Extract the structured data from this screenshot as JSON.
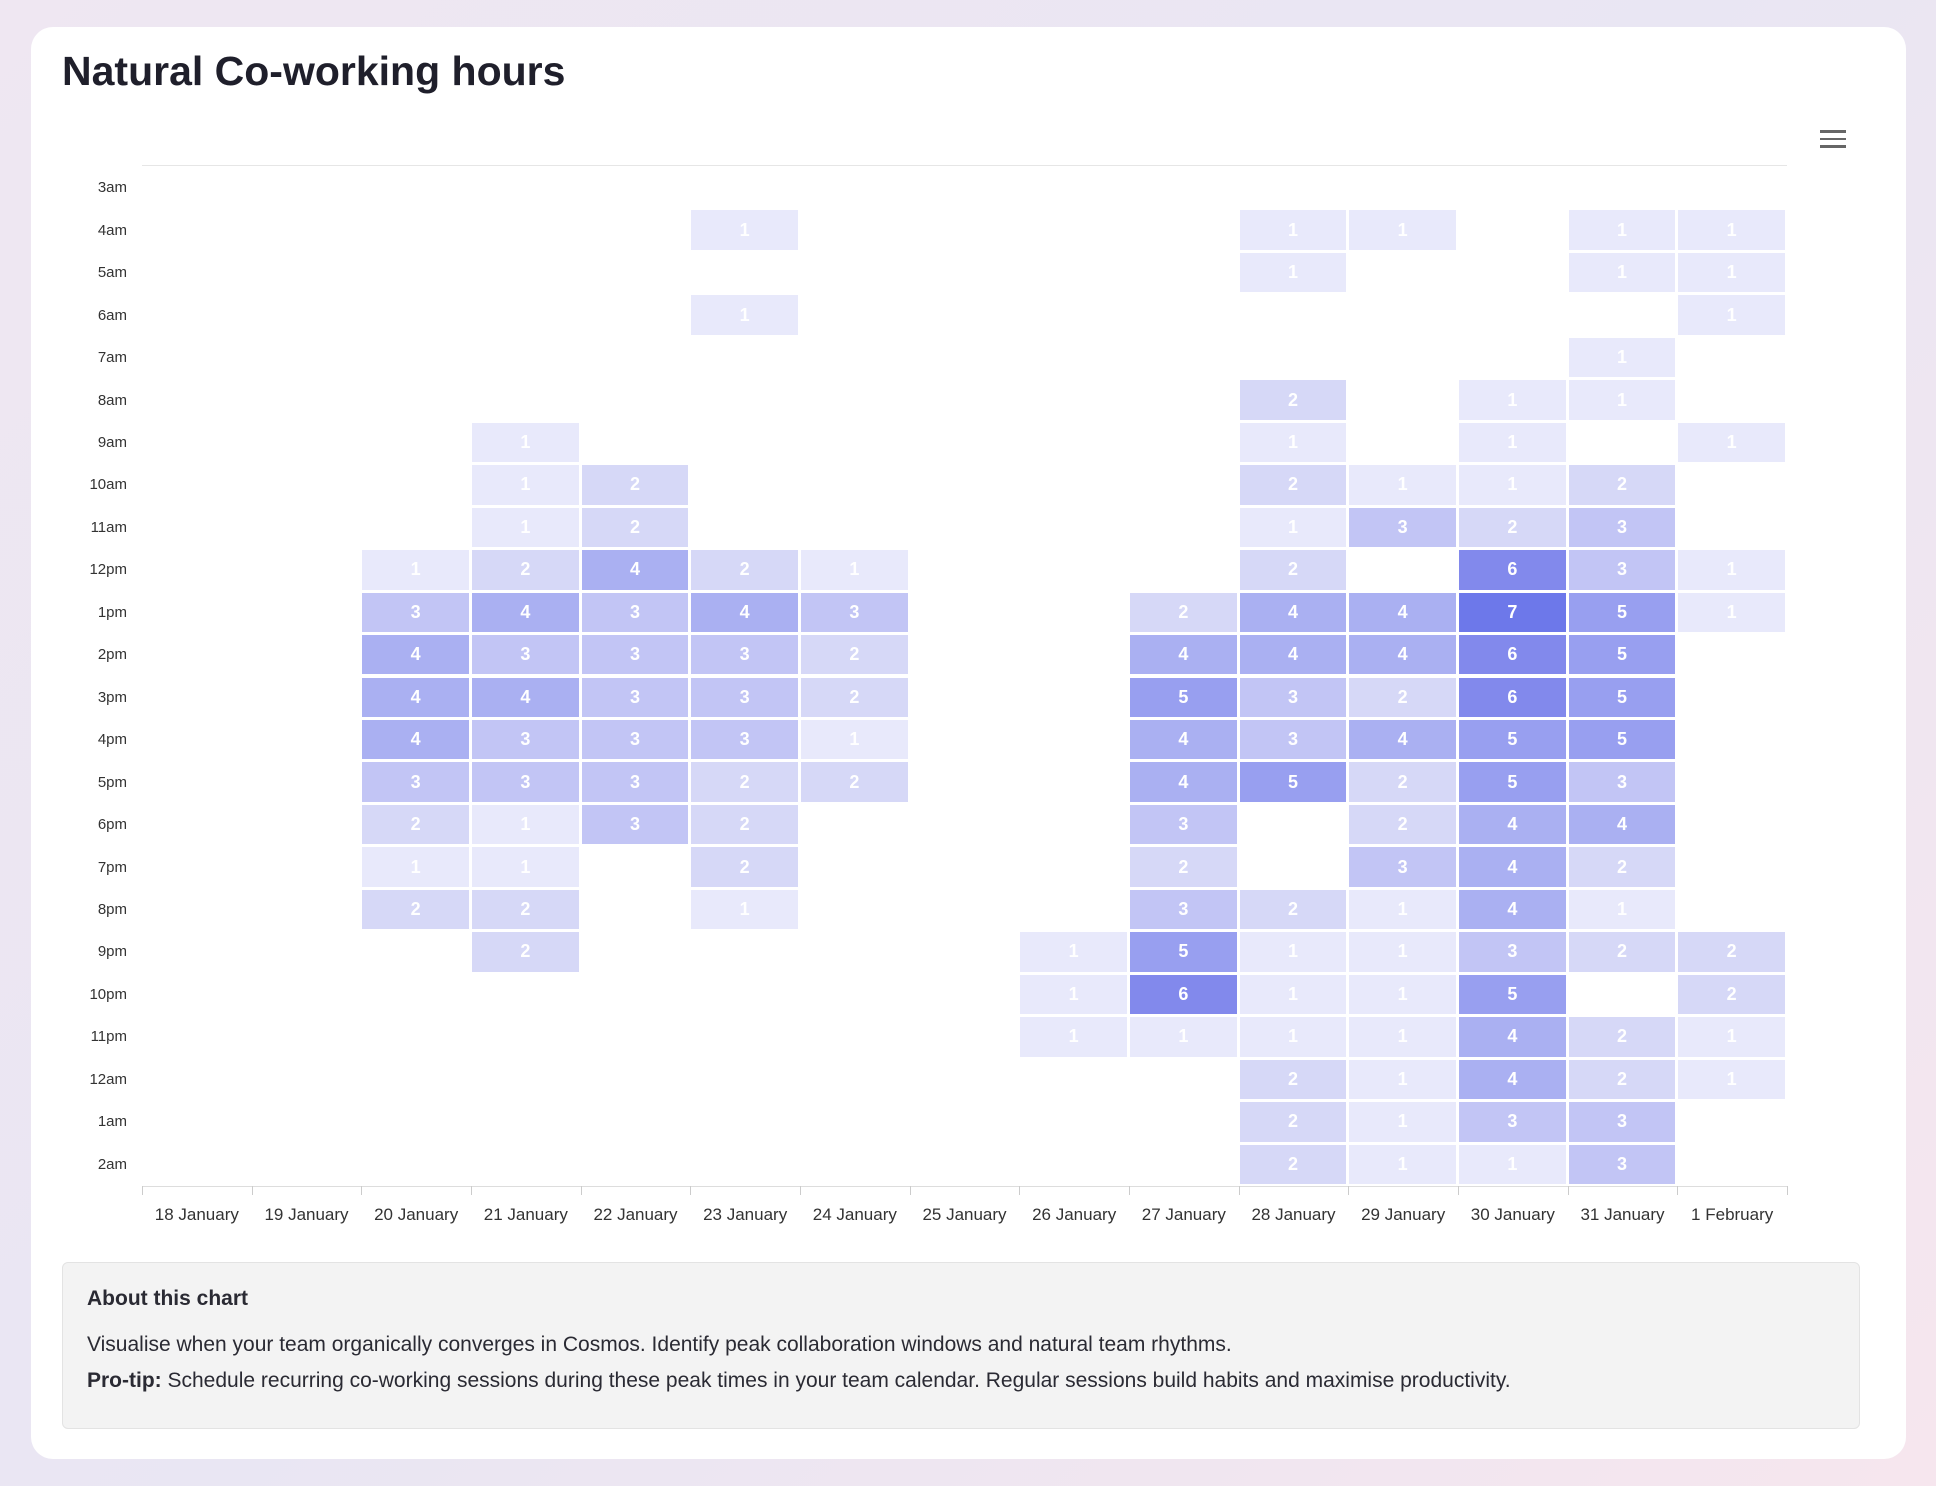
{
  "title": "Natural Co-working hours",
  "menu_icon": "hamburger-menu-icon",
  "about": {
    "heading": "About this chart",
    "description": "Visualise when your team organically converges in Cosmos. Identify peak collaboration windows and natural team rhythms.",
    "protip_label": "Pro-tip:",
    "protip_text": " Schedule recurring co-working sessions during these peak times in your team calendar. Regular sessions build habits and maximise productivity."
  },
  "chart_data": {
    "type": "heatmap",
    "x_categories": [
      "18 January",
      "19 January",
      "20 January",
      "21 January",
      "22 January",
      "23 January",
      "24 January",
      "25 January",
      "26 January",
      "27 January",
      "28 January",
      "29 January",
      "30 January",
      "31 January",
      "1 February"
    ],
    "y_categories": [
      "3am",
      "4am",
      "5am",
      "6am",
      "7am",
      "8am",
      "9am",
      "10am",
      "11am",
      "12pm",
      "1pm",
      "2pm",
      "3pm",
      "4pm",
      "5pm",
      "6pm",
      "7pm",
      "8pm",
      "9pm",
      "10pm",
      "11pm",
      "12am",
      "1am",
      "2am"
    ],
    "color_scale": {
      "1": "#e8e9fb",
      "2": "#d6d8f7",
      "3": "#c2c5f5",
      "4": "#aab0f2",
      "5": "#989ff0",
      "6": "#8289ec",
      "7": "#6d78ea"
    },
    "values": [
      [
        null,
        null,
        null,
        null,
        null,
        null,
        null,
        null,
        null,
        null,
        null,
        null,
        null,
        null,
        null
      ],
      [
        null,
        null,
        null,
        null,
        null,
        1,
        null,
        null,
        null,
        null,
        1,
        1,
        null,
        1,
        1
      ],
      [
        null,
        null,
        null,
        null,
        null,
        null,
        null,
        null,
        null,
        null,
        1,
        null,
        null,
        1,
        1
      ],
      [
        null,
        null,
        null,
        null,
        null,
        1,
        null,
        null,
        null,
        null,
        null,
        null,
        null,
        null,
        1
      ],
      [
        null,
        null,
        null,
        null,
        null,
        null,
        null,
        null,
        null,
        null,
        null,
        null,
        null,
        1,
        null
      ],
      [
        null,
        null,
        null,
        null,
        null,
        null,
        null,
        null,
        null,
        null,
        2,
        null,
        1,
        1,
        null
      ],
      [
        null,
        null,
        null,
        1,
        null,
        null,
        null,
        null,
        null,
        null,
        1,
        null,
        1,
        null,
        1
      ],
      [
        null,
        null,
        null,
        1,
        2,
        null,
        null,
        null,
        null,
        null,
        2,
        1,
        1,
        2,
        null
      ],
      [
        null,
        null,
        null,
        1,
        2,
        null,
        null,
        null,
        null,
        null,
        1,
        3,
        2,
        3,
        null
      ],
      [
        null,
        null,
        1,
        2,
        4,
        2,
        1,
        null,
        null,
        null,
        2,
        null,
        6,
        3,
        1
      ],
      [
        null,
        null,
        3,
        4,
        3,
        4,
        3,
        null,
        null,
        2,
        4,
        4,
        7,
        5,
        1
      ],
      [
        null,
        null,
        4,
        3,
        3,
        3,
        2,
        null,
        null,
        4,
        4,
        4,
        6,
        5,
        null
      ],
      [
        null,
        null,
        4,
        4,
        3,
        3,
        2,
        null,
        null,
        5,
        3,
        2,
        6,
        5,
        null
      ],
      [
        null,
        null,
        4,
        3,
        3,
        3,
        1,
        null,
        null,
        4,
        3,
        4,
        5,
        5,
        null
      ],
      [
        null,
        null,
        3,
        3,
        3,
        2,
        2,
        null,
        null,
        4,
        5,
        2,
        5,
        3,
        null
      ],
      [
        null,
        null,
        2,
        1,
        3,
        2,
        null,
        null,
        null,
        3,
        null,
        2,
        4,
        4,
        null
      ],
      [
        null,
        null,
        1,
        1,
        null,
        2,
        null,
        null,
        null,
        2,
        null,
        3,
        4,
        2,
        null
      ],
      [
        null,
        null,
        2,
        2,
        null,
        1,
        null,
        null,
        null,
        3,
        2,
        1,
        4,
        1,
        null
      ],
      [
        null,
        null,
        null,
        2,
        null,
        null,
        null,
        null,
        1,
        5,
        1,
        1,
        3,
        2,
        2
      ],
      [
        null,
        null,
        null,
        null,
        null,
        null,
        null,
        null,
        1,
        6,
        1,
        1,
        5,
        null,
        2
      ],
      [
        null,
        null,
        null,
        null,
        null,
        null,
        null,
        null,
        1,
        1,
        1,
        1,
        4,
        2,
        1
      ],
      [
        null,
        null,
        null,
        null,
        null,
        null,
        null,
        null,
        null,
        null,
        2,
        1,
        4,
        2,
        1
      ],
      [
        null,
        null,
        null,
        null,
        null,
        null,
        null,
        null,
        null,
        null,
        2,
        1,
        3,
        3,
        null
      ],
      [
        null,
        null,
        null,
        null,
        null,
        null,
        null,
        null,
        null,
        null,
        2,
        1,
        1,
        3,
        null
      ]
    ],
    "grid": false,
    "legend": "none"
  }
}
